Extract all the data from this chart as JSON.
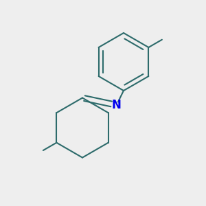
{
  "background_color": "#eeeeee",
  "bond_color": "#2d6b6b",
  "nitrogen_color": "#0000ee",
  "line_width": 1.5,
  "figsize": [
    3.0,
    3.0
  ],
  "dpi": 100
}
